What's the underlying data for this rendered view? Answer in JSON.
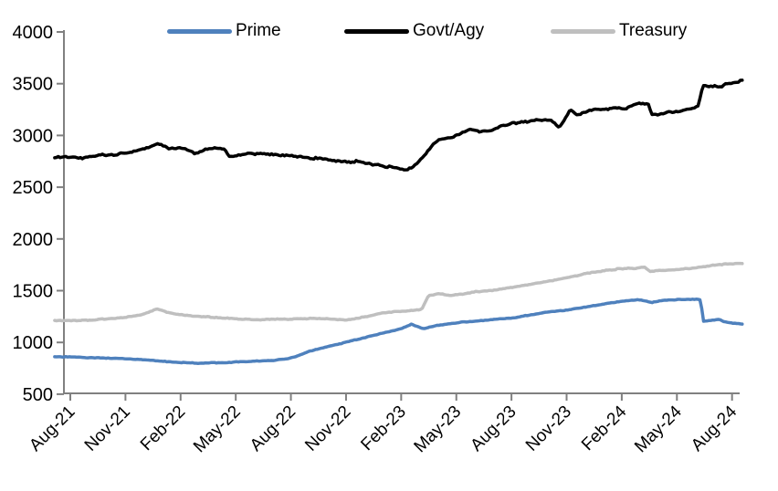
{
  "chart_data": {
    "type": "line",
    "title": "",
    "background_color": "#FFFFFF",
    "axis_color": "#808080",
    "label_color": "#000000",
    "legend": {
      "position": "top",
      "items": [
        "Prime",
        "Govt/Agy",
        "Treasury"
      ]
    },
    "x_axis": {
      "tick_labels": [
        "Aug-21",
        "Nov-21",
        "Feb-22",
        "May-22",
        "Aug-22",
        "Nov-22",
        "Feb-23",
        "May-23",
        "Aug-23",
        "Nov-23",
        "Feb-24",
        "May-24",
        "Aug-24"
      ],
      "tick_positions_months": [
        0,
        3,
        6,
        9,
        12,
        15,
        18,
        21,
        24,
        27,
        30,
        33,
        36
      ],
      "label_rotation_deg": -45
    },
    "y_axis": {
      "tick_labels": [
        "500",
        "1000",
        "1500",
        "2000",
        "2500",
        "3000",
        "3500",
        "4000"
      ],
      "min": 500,
      "max": 4000,
      "step": 500
    },
    "grid": "off",
    "series": [
      {
        "name": "Prime",
        "color": "#4F81BD",
        "noise_amplitude": 5,
        "points": [
          [
            -0.85,
            862
          ],
          [
            0,
            860
          ],
          [
            1,
            852
          ],
          [
            2,
            848
          ],
          [
            3,
            842
          ],
          [
            4,
            832
          ],
          [
            5,
            818
          ],
          [
            6,
            806
          ],
          [
            7,
            800
          ],
          [
            8,
            803
          ],
          [
            9,
            810
          ],
          [
            10,
            817
          ],
          [
            11,
            827
          ],
          [
            11.8,
            845
          ],
          [
            12.3,
            865
          ],
          [
            13,
            915
          ],
          [
            14,
            958
          ],
          [
            15,
            1002
          ],
          [
            16,
            1045
          ],
          [
            17,
            1090
          ],
          [
            18,
            1132
          ],
          [
            18.55,
            1175
          ],
          [
            19.2,
            1132
          ],
          [
            20,
            1165
          ],
          [
            21,
            1190
          ],
          [
            22,
            1207
          ],
          [
            23,
            1221
          ],
          [
            24,
            1236
          ],
          [
            25,
            1265
          ],
          [
            26,
            1295
          ],
          [
            27,
            1312
          ],
          [
            28,
            1340
          ],
          [
            29,
            1370
          ],
          [
            30,
            1398
          ],
          [
            31,
            1412
          ],
          [
            31.6,
            1385
          ],
          [
            32.3,
            1408
          ],
          [
            33,
            1413
          ],
          [
            34,
            1418
          ],
          [
            34.3,
            1415
          ],
          [
            34.42,
            1205
          ],
          [
            34.9,
            1212
          ],
          [
            35.3,
            1222
          ],
          [
            35.6,
            1200
          ],
          [
            36,
            1188
          ],
          [
            36.55,
            1178
          ]
        ]
      },
      {
        "name": "Govt/Agy",
        "color": "#000000",
        "noise_amplitude": 15,
        "points": [
          [
            -0.85,
            2785
          ],
          [
            0,
            2790
          ],
          [
            0.5,
            2778
          ],
          [
            1,
            2800
          ],
          [
            2,
            2812
          ],
          [
            3,
            2832
          ],
          [
            4,
            2868
          ],
          [
            4.8,
            2925
          ],
          [
            5.4,
            2872
          ],
          [
            6,
            2886
          ],
          [
            6.8,
            2826
          ],
          [
            7.5,
            2876
          ],
          [
            8.4,
            2878
          ],
          [
            8.65,
            2792
          ],
          [
            9.5,
            2818
          ],
          [
            10.5,
            2822
          ],
          [
            11.5,
            2806
          ],
          [
            12.5,
            2796
          ],
          [
            13.5,
            2776
          ],
          [
            14.5,
            2756
          ],
          [
            15.1,
            2736
          ],
          [
            15.6,
            2752
          ],
          [
            16.5,
            2716
          ],
          [
            17.5,
            2692
          ],
          [
            18.35,
            2665
          ],
          [
            18.85,
            2728
          ],
          [
            19.9,
            2945
          ],
          [
            20.5,
            2975
          ],
          [
            21,
            2992
          ],
          [
            21.8,
            3068
          ],
          [
            22.3,
            3035
          ],
          [
            23,
            3055
          ],
          [
            23.7,
            3108
          ],
          [
            24.5,
            3125
          ],
          [
            25.5,
            3150
          ],
          [
            26.2,
            3145
          ],
          [
            26.6,
            3076
          ],
          [
            27.2,
            3245
          ],
          [
            27.6,
            3192
          ],
          [
            28,
            3228
          ],
          [
            28.6,
            3262
          ],
          [
            29.2,
            3255
          ],
          [
            29.6,
            3272
          ],
          [
            30.1,
            3252
          ],
          [
            30.9,
            3312
          ],
          [
            31.45,
            3302
          ],
          [
            31.65,
            3196
          ],
          [
            32.5,
            3222
          ],
          [
            33.5,
            3246
          ],
          [
            34.15,
            3282
          ],
          [
            34.42,
            3490
          ],
          [
            34.9,
            3472
          ],
          [
            35.4,
            3478
          ],
          [
            36,
            3508
          ],
          [
            36.55,
            3532
          ]
        ]
      },
      {
        "name": "Treasury",
        "color": "#BFBFBF",
        "noise_amplitude": 7,
        "points": [
          [
            -0.85,
            1213
          ],
          [
            0,
            1210
          ],
          [
            1,
            1216
          ],
          [
            2,
            1228
          ],
          [
            3,
            1243
          ],
          [
            4,
            1272
          ],
          [
            4.7,
            1323
          ],
          [
            5.3,
            1290
          ],
          [
            6,
            1268
          ],
          [
            7,
            1252
          ],
          [
            8,
            1240
          ],
          [
            9,
            1228
          ],
          [
            10,
            1218
          ],
          [
            11,
            1222
          ],
          [
            12,
            1226
          ],
          [
            13,
            1232
          ],
          [
            14,
            1226
          ],
          [
            15,
            1218
          ],
          [
            16,
            1245
          ],
          [
            17,
            1288
          ],
          [
            18,
            1300
          ],
          [
            19.1,
            1318
          ],
          [
            19.5,
            1455
          ],
          [
            20.1,
            1472
          ],
          [
            20.7,
            1455
          ],
          [
            21.5,
            1470
          ],
          [
            22,
            1487
          ],
          [
            23,
            1502
          ],
          [
            24,
            1530
          ],
          [
            25,
            1560
          ],
          [
            26,
            1590
          ],
          [
            27,
            1622
          ],
          [
            28,
            1662
          ],
          [
            29,
            1692
          ],
          [
            29.9,
            1712
          ],
          [
            30.6,
            1716
          ],
          [
            31.25,
            1724
          ],
          [
            31.55,
            1684
          ],
          [
            32.1,
            1694
          ],
          [
            33,
            1707
          ],
          [
            34,
            1722
          ],
          [
            35,
            1748
          ],
          [
            36,
            1760
          ],
          [
            36.55,
            1765
          ]
        ]
      }
    ],
    "x_unit": "month index from Aug-21",
    "notes_visible_on_screen": ""
  }
}
